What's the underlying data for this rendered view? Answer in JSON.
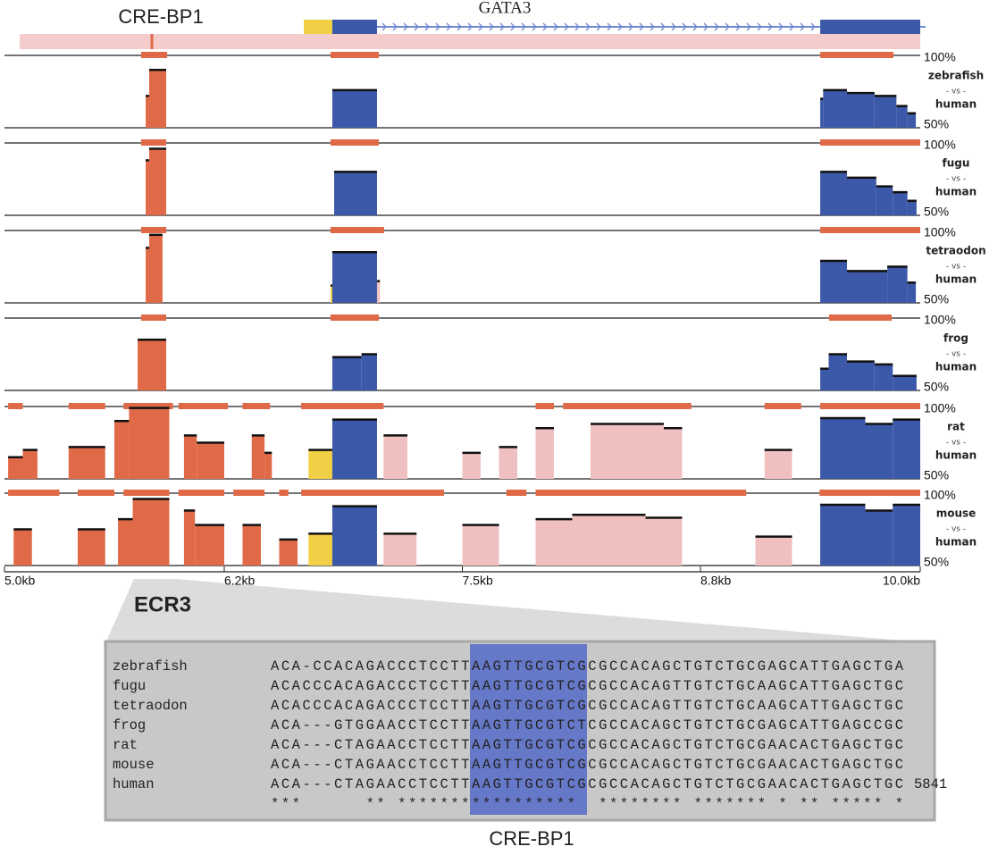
{
  "chart_data": {
    "type": "conservation",
    "xlim": [
      5.0,
      10.0
    ],
    "xticks": [
      {
        "value": 5.0,
        "label": "5.0kb"
      },
      {
        "value": 6.2,
        "label": "6.2kb"
      },
      {
        "value": 7.5,
        "label": "7.5kb"
      },
      {
        "value": 8.8,
        "label": "8.8kb"
      },
      {
        "value": 10.0,
        "label": "10.0kb"
      }
    ],
    "ylim": [
      50,
      100
    ],
    "yticks": [
      {
        "value": 50,
        "label": "50%"
      },
      {
        "value": 100,
        "label": "100%"
      }
    ],
    "conserved_color": "#e06a48",
    "gene_model": {
      "label": "GATA3",
      "segments": [
        {
          "start": 6.634,
          "end": 6.79,
          "color": "#f2d046"
        },
        {
          "start": 6.79,
          "end": 7.034,
          "color": "#3c58a8"
        },
        {
          "start": 9.454,
          "end": 10.0,
          "color": "#3c58a8"
        }
      ],
      "intron": [
        7.034,
        9.454
      ],
      "element": {
        "label": "CRE-BP1",
        "position": 5.805
      }
    },
    "tracks": [
      {
        "species": "zebrafish",
        "vs": "- vs -",
        "reference": "human",
        "conserved_regions": [
          [
            5.746,
            5.888
          ],
          [
            6.78,
            7.044
          ],
          [
            9.454,
            9.854
          ]
        ],
        "blocks": [
          {
            "start": 5.771,
            "end": 5.79,
            "value": 72,
            "color": "#e06a48"
          },
          {
            "start": 5.79,
            "end": 5.883,
            "value": 90,
            "color": "#e06a48"
          },
          {
            "start": 6.79,
            "end": 7.034,
            "value": 76,
            "color": "#3c58a8"
          },
          {
            "start": 9.454,
            "end": 9.47,
            "value": 70,
            "color": "#3c58a8"
          },
          {
            "start": 9.47,
            "end": 9.6,
            "value": 76,
            "color": "#3c58a8"
          },
          {
            "start": 9.6,
            "end": 9.75,
            "value": 74,
            "color": "#3c58a8"
          },
          {
            "start": 9.75,
            "end": 9.87,
            "value": 72,
            "color": "#3c58a8"
          },
          {
            "start": 9.87,
            "end": 9.93,
            "value": 65,
            "color": "#3c58a8"
          },
          {
            "start": 9.93,
            "end": 9.976,
            "value": 60,
            "color": "#3c58a8"
          }
        ]
      },
      {
        "species": "fugu",
        "vs": "- vs -",
        "reference": "human",
        "conserved_regions": [
          [
            5.746,
            5.883
          ],
          [
            6.78,
            7.044
          ],
          [
            9.454,
            10.0
          ]
        ],
        "blocks": [
          {
            "start": 5.771,
            "end": 5.79,
            "value": 88,
            "color": "#e06a48"
          },
          {
            "start": 5.79,
            "end": 5.883,
            "value": 96,
            "color": "#e06a48"
          },
          {
            "start": 6.8,
            "end": 7.034,
            "value": 80,
            "color": "#3c58a8"
          },
          {
            "start": 9.454,
            "end": 9.6,
            "value": 80,
            "color": "#3c58a8"
          },
          {
            "start": 9.6,
            "end": 9.76,
            "value": 76,
            "color": "#3c58a8"
          },
          {
            "start": 9.76,
            "end": 9.85,
            "value": 70,
            "color": "#3c58a8"
          },
          {
            "start": 9.85,
            "end": 9.93,
            "value": 66,
            "color": "#3c58a8"
          },
          {
            "start": 9.93,
            "end": 9.98,
            "value": 60,
            "color": "#3c58a8"
          }
        ]
      },
      {
        "species": "tetraodon",
        "vs": "- vs -",
        "reference": "human",
        "conserved_regions": [
          [
            5.746,
            5.883
          ],
          [
            6.78,
            7.073
          ],
          [
            9.454,
            10.0
          ]
        ],
        "blocks": [
          {
            "start": 5.771,
            "end": 5.79,
            "value": 88,
            "color": "#e06a48"
          },
          {
            "start": 5.79,
            "end": 5.863,
            "value": 97,
            "color": "#e06a48"
          },
          {
            "start": 6.78,
            "end": 6.79,
            "value": 62,
            "color": "#f2d046"
          },
          {
            "start": 6.79,
            "end": 7.034,
            "value": 85,
            "color": "#3c58a8"
          },
          {
            "start": 7.034,
            "end": 7.05,
            "value": 65,
            "color": "#f0c0c0"
          },
          {
            "start": 9.454,
            "end": 9.6,
            "value": 79,
            "color": "#3c58a8"
          },
          {
            "start": 9.6,
            "end": 9.7,
            "value": 72,
            "color": "#3c58a8"
          },
          {
            "start": 9.7,
            "end": 9.82,
            "value": 72,
            "color": "#3c58a8"
          },
          {
            "start": 9.82,
            "end": 9.93,
            "value": 75,
            "color": "#3c58a8"
          },
          {
            "start": 9.93,
            "end": 9.976,
            "value": 64,
            "color": "#3c58a8"
          }
        ]
      },
      {
        "species": "frog",
        "vs": "- vs -",
        "reference": "human",
        "conserved_regions": [
          [
            5.746,
            5.883
          ],
          [
            6.78,
            7.044
          ],
          [
            9.502,
            9.844
          ]
        ],
        "blocks": [
          {
            "start": 5.727,
            "end": 5.883,
            "value": 85,
            "color": "#e06a48"
          },
          {
            "start": 6.79,
            "end": 6.95,
            "value": 73,
            "color": "#3c58a8"
          },
          {
            "start": 6.95,
            "end": 7.034,
            "value": 75,
            "color": "#3c58a8"
          },
          {
            "start": 9.454,
            "end": 9.5,
            "value": 65,
            "color": "#3c58a8"
          },
          {
            "start": 9.5,
            "end": 9.6,
            "value": 75,
            "color": "#3c58a8"
          },
          {
            "start": 9.6,
            "end": 9.75,
            "value": 70,
            "color": "#3c58a8"
          },
          {
            "start": 9.75,
            "end": 9.85,
            "value": 68,
            "color": "#3c58a8"
          },
          {
            "start": 9.85,
            "end": 9.98,
            "value": 60,
            "color": "#3c58a8"
          }
        ]
      },
      {
        "species": "rat",
        "vs": "- vs -",
        "reference": "human",
        "conserved_regions": [
          [
            5.02,
            5.1
          ],
          [
            5.35,
            5.55
          ],
          [
            5.65,
            5.92
          ],
          [
            5.95,
            6.22
          ],
          [
            6.3,
            6.45
          ],
          [
            6.62,
            6.8
          ],
          [
            6.8,
            7.07
          ],
          [
            7.9,
            8.0
          ],
          [
            8.05,
            8.75
          ],
          [
            9.15,
            9.35
          ],
          [
            9.454,
            10.0
          ]
        ],
        "blocks": [
          {
            "start": 5.02,
            "end": 5.1,
            "value": 65,
            "color": "#e06a48"
          },
          {
            "start": 5.1,
            "end": 5.18,
            "value": 70,
            "color": "#e06a48"
          },
          {
            "start": 5.35,
            "end": 5.55,
            "value": 72,
            "color": "#e06a48"
          },
          {
            "start": 5.6,
            "end": 5.68,
            "value": 90,
            "color": "#e06a48"
          },
          {
            "start": 5.68,
            "end": 5.9,
            "value": 99,
            "color": "#e06a48"
          },
          {
            "start": 5.98,
            "end": 6.05,
            "value": 80,
            "color": "#e06a48"
          },
          {
            "start": 6.05,
            "end": 6.2,
            "value": 75,
            "color": "#e06a48"
          },
          {
            "start": 6.35,
            "end": 6.42,
            "value": 80,
            "color": "#e06a48"
          },
          {
            "start": 6.42,
            "end": 6.46,
            "value": 68,
            "color": "#e06a48"
          },
          {
            "start": 6.66,
            "end": 6.79,
            "value": 70,
            "color": "#f2d046"
          },
          {
            "start": 6.79,
            "end": 7.034,
            "value": 91,
            "color": "#3c58a8"
          },
          {
            "start": 7.07,
            "end": 7.2,
            "value": 80,
            "color": "#f0c0c0"
          },
          {
            "start": 7.5,
            "end": 7.6,
            "value": 68,
            "color": "#f0c0c0"
          },
          {
            "start": 7.7,
            "end": 7.8,
            "value": 72,
            "color": "#f0c0c0"
          },
          {
            "start": 7.9,
            "end": 8.0,
            "value": 85,
            "color": "#f0c0c0"
          },
          {
            "start": 8.2,
            "end": 8.6,
            "value": 88,
            "color": "#f0c0c0"
          },
          {
            "start": 8.6,
            "end": 8.7,
            "value": 85,
            "color": "#f0c0c0"
          },
          {
            "start": 9.15,
            "end": 9.3,
            "value": 70,
            "color": "#f0c0c0"
          },
          {
            "start": 9.454,
            "end": 9.7,
            "value": 92,
            "color": "#3c58a8"
          },
          {
            "start": 9.7,
            "end": 9.85,
            "value": 88,
            "color": "#3c58a8"
          },
          {
            "start": 9.85,
            "end": 10.0,
            "value": 91,
            "color": "#3c58a8"
          }
        ]
      },
      {
        "species": "mouse",
        "vs": "- vs -",
        "reference": "human",
        "conserved_regions": [
          [
            5.02,
            5.3
          ],
          [
            5.4,
            5.6
          ],
          [
            5.65,
            5.9
          ],
          [
            5.95,
            6.2
          ],
          [
            6.25,
            6.42
          ],
          [
            6.5,
            6.55
          ],
          [
            6.62,
            7.4
          ],
          [
            7.74,
            7.85
          ],
          [
            7.9,
            8.6
          ],
          [
            8.6,
            9.05
          ],
          [
            9.45,
            10.0
          ]
        ],
        "blocks": [
          {
            "start": 5.05,
            "end": 5.15,
            "value": 75,
            "color": "#e06a48"
          },
          {
            "start": 5.4,
            "end": 5.55,
            "value": 75,
            "color": "#e06a48"
          },
          {
            "start": 5.62,
            "end": 5.7,
            "value": 82,
            "color": "#e06a48"
          },
          {
            "start": 5.7,
            "end": 5.9,
            "value": 96,
            "color": "#e06a48"
          },
          {
            "start": 5.98,
            "end": 6.04,
            "value": 88,
            "color": "#e06a48"
          },
          {
            "start": 6.04,
            "end": 6.2,
            "value": 78,
            "color": "#e06a48"
          },
          {
            "start": 6.3,
            "end": 6.4,
            "value": 78,
            "color": "#e06a48"
          },
          {
            "start": 6.5,
            "end": 6.6,
            "value": 68,
            "color": "#e06a48"
          },
          {
            "start": 6.66,
            "end": 6.79,
            "value": 72,
            "color": "#f2d046"
          },
          {
            "start": 6.79,
            "end": 7.034,
            "value": 91,
            "color": "#3c58a8"
          },
          {
            "start": 7.07,
            "end": 7.25,
            "value": 72,
            "color": "#f0c0c0"
          },
          {
            "start": 7.5,
            "end": 7.7,
            "value": 78,
            "color": "#f0c0c0"
          },
          {
            "start": 7.9,
            "end": 8.1,
            "value": 82,
            "color": "#f0c0c0"
          },
          {
            "start": 8.1,
            "end": 8.5,
            "value": 85,
            "color": "#f0c0c0"
          },
          {
            "start": 8.5,
            "end": 8.7,
            "value": 83,
            "color": "#f0c0c0"
          },
          {
            "start": 9.1,
            "end": 9.3,
            "value": 70,
            "color": "#f0c0c0"
          },
          {
            "start": 9.454,
            "end": 9.7,
            "value": 92,
            "color": "#3c58a8"
          },
          {
            "start": 9.7,
            "end": 9.85,
            "value": 88,
            "color": "#3c58a8"
          },
          {
            "start": 9.85,
            "end": 10.0,
            "value": 92,
            "color": "#3c58a8"
          }
        ]
      }
    ]
  },
  "callout": {
    "label": "ECR3"
  },
  "alignment": {
    "rows": [
      {
        "species": "zebrafish",
        "sequence": "ACA-CCACAGACCCTCCTTAAGTTGCGTCGCGCCACAGCTGTCTGCGAGCATTGAGCTGA"
      },
      {
        "species": "fugu",
        "sequence": "ACACCCACAGACCCTCCTTAAGTTGCGTCGCGCCACAGTTGTCTGCAAGCATTGAGCTGC"
      },
      {
        "species": "tetraodon",
        "sequence": "ACACCCACAGACCCTCCTTAAGTTGCGTCGCGCCACAGTTGTCTGCAAGCATTGAGCTGC"
      },
      {
        "species": "frog",
        "sequence": "ACA---GTGGAACCTCCTTAAGTTGCGTCTCGCCACAGCTGTCTGCGAGCATTGAGCCGC"
      },
      {
        "species": "rat",
        "sequence": "ACA---CTAGAACCTCCTTAAGTTGCGTCGCGCCACAGCTGTCTGCGAACACTGAGCTGC"
      },
      {
        "species": "mouse",
        "sequence": "ACA---CTAGAACCTCCTTAAGTTGCGTCGCGCCACAGCTGTCTGCGAACACTGAGCTGC"
      },
      {
        "species": "human",
        "sequence": "ACA---CTAGAACCTCCTTAAGTTGCGTCGCGCCACAGCTGTCTGCGAACACTGAGCTGC"
      }
    ],
    "end_position": "5841",
    "consensus": "***      ** *****************  ******** ******* * ** ***** *",
    "motif_label": "CRE-BP1"
  }
}
